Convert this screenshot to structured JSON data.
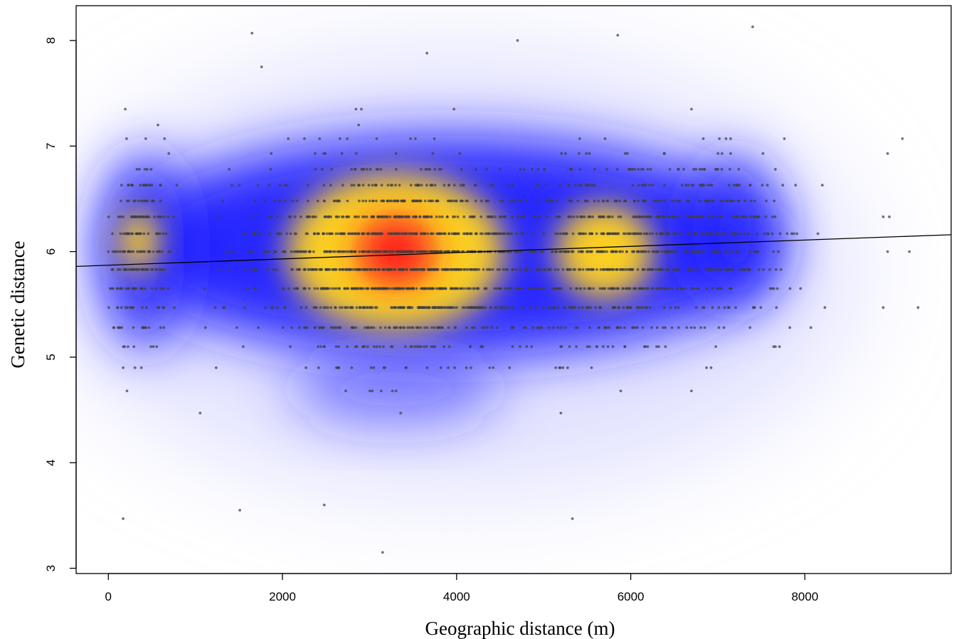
{
  "chart_data": {
    "type": "scatter",
    "title": "",
    "xlabel": "Geographic distance (m)",
    "ylabel": "Genetic distance",
    "xlim": [
      -370,
      9680
    ],
    "ylim": [
      2.95,
      8.33
    ],
    "x_ticks": [
      "0",
      "2000",
      "4000",
      "6000",
      "8000"
    ],
    "x_tick_values": [
      0,
      2000,
      4000,
      6000,
      8000
    ],
    "y_ticks": [
      "3",
      "4",
      "5",
      "6",
      "7",
      "8"
    ],
    "y_tick_values": [
      3,
      4,
      5,
      6,
      7,
      8
    ],
    "grid": false,
    "legend": "none",
    "overlay": "smoothed density heatmap of points (white → blue → yellow → red)",
    "density_colors": [
      "#ffffff",
      "#2020ff",
      "#ffd21a",
      "#ff2020"
    ],
    "point_color": "#404040",
    "density_peaks": [
      {
        "x": 3300,
        "y": 6.0,
        "level": "high"
      },
      {
        "x": 5700,
        "y": 6.0,
        "level": "medium"
      },
      {
        "x": 350,
        "y": 6.1,
        "level": "medium-low"
      }
    ],
    "regression_line": {
      "type": "linear fit",
      "color": "#000000",
      "points": [
        [
          -370,
          5.86
        ],
        [
          9680,
          6.16
        ]
      ]
    },
    "x_range_of_points": [
      0,
      9300
    ],
    "y_range_of_points": [
      3.15,
      8.13
    ],
    "y_levels_of_points": [
      3.47,
      3.73,
      4.0,
      4.23,
      4.47,
      4.68,
      4.9,
      5.1,
      5.28,
      5.47,
      5.65,
      5.83,
      6.0,
      6.17,
      6.33,
      6.48,
      6.63,
      6.78,
      6.93,
      7.07,
      7.2,
      7.35,
      7.48,
      7.62,
      7.75,
      7.88,
      8.0
    ]
  }
}
